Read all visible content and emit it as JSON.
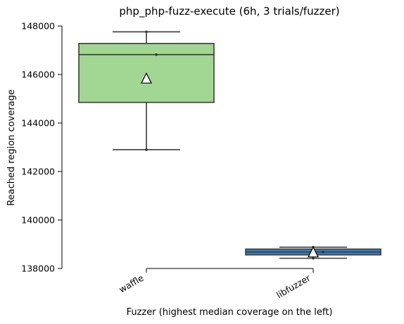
{
  "chart_data": {
    "type": "box",
    "title": "php_php-fuzz-execute (6h, 3 trials/fuzzer)",
    "xlabel": "Fuzzer (highest median coverage on the left)",
    "ylabel": "Reached region coverage",
    "ylim": [
      138000,
      148000
    ],
    "yticks": [
      138000,
      140000,
      142000,
      144000,
      146000,
      148000
    ],
    "grid": false,
    "categories": [
      "waffle",
      "libfuzzer"
    ],
    "boxes": [
      {
        "name": "waffle",
        "color": "#a1d693",
        "whisker_low": 142900,
        "q1": 144850,
        "median": 146820,
        "q3": 147280,
        "whisker_high": 147760,
        "mean": 145820,
        "points": [
          142900,
          146820,
          147760
        ]
      },
      {
        "name": "libfuzzer",
        "color": "#3a7ebf",
        "whisker_low": 138420,
        "q1": 138560,
        "median": 138680,
        "q3": 138800,
        "whisker_high": 138880,
        "mean": 138650,
        "points": [
          138420,
          138680,
          138880
        ]
      }
    ]
  }
}
